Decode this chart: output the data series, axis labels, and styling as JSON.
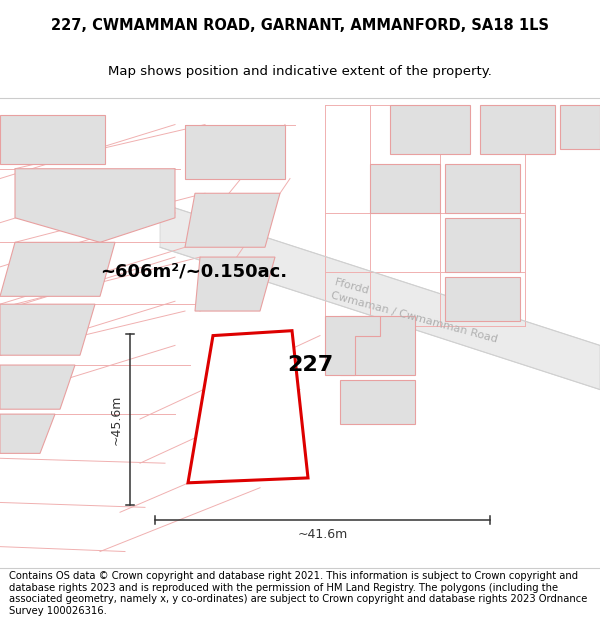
{
  "title": "227, CWMAMMAN ROAD, GARNANT, AMMANFORD, SA18 1LS",
  "subtitle": "Map shows position and indicative extent of the property.",
  "footer": "Contains OS data © Crown copyright and database right 2021. This information is subject to Crown copyright and database rights 2023 and is reproduced with the permission of HM Land Registry. The polygons (including the associated geometry, namely x, y co-ordinates) are subject to Crown copyright and database rights 2023 Ordnance Survey 100026316.",
  "area_label": "~606m²/~0.150ac.",
  "dim_h": "~45.6m",
  "dim_w": "~41.6m",
  "plot_num": "227",
  "bg_color": "#ffffff",
  "building_fill": "#e0e0e0",
  "building_edge": "#e8a0a0",
  "parcel_line": "#f0b0b0",
  "highlight_color": "#dd0000",
  "road_label_color": "#b0b0b0",
  "dim_color": "#333333",
  "title_fontsize": 10.5,
  "subtitle_fontsize": 9.5,
  "footer_fontsize": 7.2,
  "area_fontsize": 13,
  "dim_fontsize": 9,
  "plot_fontsize": 16,
  "road_fontsize": 8
}
